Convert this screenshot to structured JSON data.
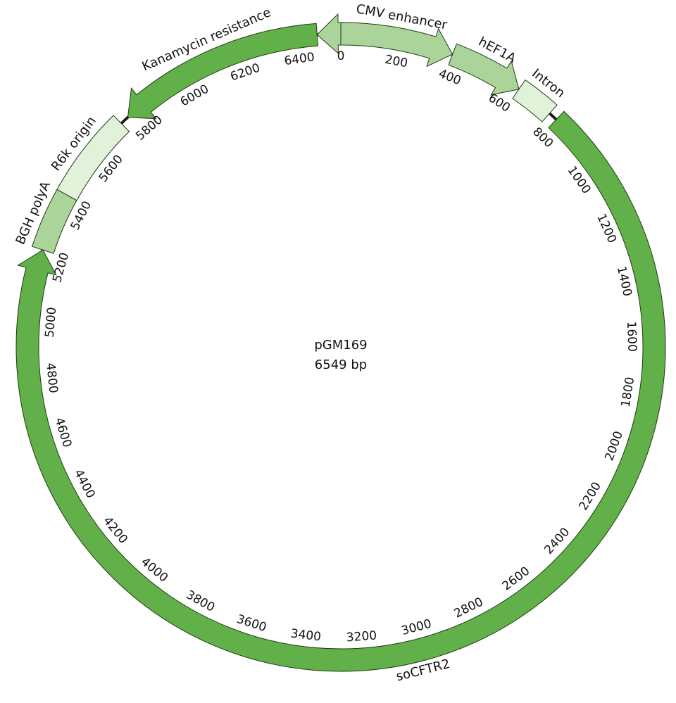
{
  "plasmid": {
    "name": "pGM169",
    "size_label": "6549 bp",
    "length": 6549
  },
  "colors": {
    "dark_green": "#62b04a",
    "medium_green": "#aad49a",
    "light_green": "#e2f1da",
    "backbone": "#1a1a1a"
  },
  "features": [
    {
      "label": "CMV enhancer",
      "start": 0,
      "end": 380,
      "direction": "forward",
      "color": "medium_green",
      "name": "feature-cmv-enhancer"
    },
    {
      "label": "hEF1A",
      "start": 380,
      "end": 630,
      "direction": "forward",
      "color": "medium_green",
      "name": "feature-hef1a"
    },
    {
      "label": "Intron",
      "start": 630,
      "end": 760,
      "direction": "none",
      "color": "light_green",
      "name": "feature-intron"
    },
    {
      "label": "soCFTR2",
      "start": 790,
      "end": 5240,
      "direction": "forward",
      "color": "dark_green",
      "name": "feature-socftr2"
    },
    {
      "label": "BGH polyA",
      "start": 5240,
      "end": 5440,
      "direction": "none",
      "color": "medium_green",
      "name": "feature-bgh-polya"
    },
    {
      "label": "R6k origin",
      "start": 5440,
      "end": 5740,
      "direction": "none",
      "color": "light_green",
      "name": "feature-r6k-origin"
    },
    {
      "label": "Kanamycin resistance",
      "start": 5770,
      "end": 6470,
      "direction": "reverse",
      "color": "dark_green",
      "name": "feature-kanamycin-resistance"
    },
    {
      "label": "",
      "start": 6470,
      "end": 6549,
      "direction": "reverse",
      "color": "medium_green",
      "name": "feature-small-reverse"
    }
  ],
  "ticks": [
    "0",
    "200",
    "400",
    "600",
    "800",
    "1000",
    "1200",
    "1400",
    "1600",
    "1800",
    "2000",
    "2200",
    "2400",
    "2600",
    "2800",
    "3000",
    "3200",
    "3400",
    "3600",
    "3800",
    "4000",
    "4200",
    "4400",
    "4600",
    "4800",
    "5000",
    "5200",
    "5400",
    "5600",
    "5800",
    "6000",
    "6200",
    "6400"
  ]
}
